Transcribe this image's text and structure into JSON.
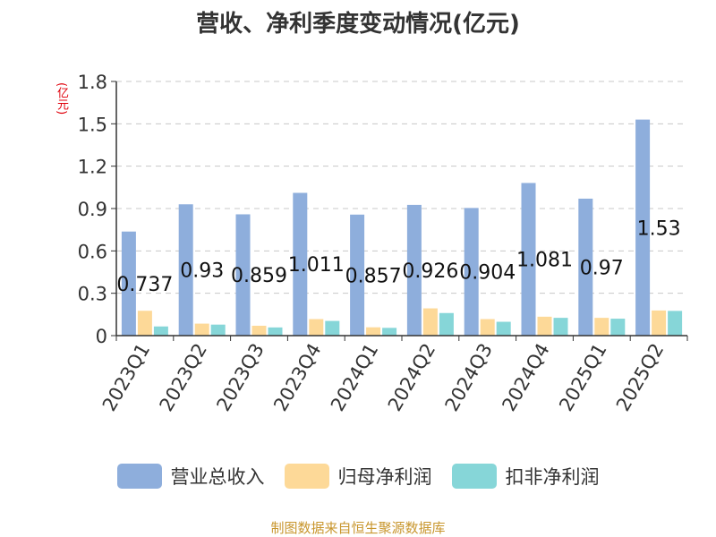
{
  "chart_data": {
    "type": "bar",
    "title": "营收、净利季度变动情况(亿元)",
    "ylabel": "(亿元)",
    "xlabel": "",
    "ylim": [
      0,
      1.8
    ],
    "yticks": [
      "0",
      "0.3",
      "0.6",
      "0.9",
      "1.2",
      "1.5",
      "1.8"
    ],
    "grid": true,
    "legend_position": "bottom",
    "categories": [
      "2023Q1",
      "2023Q2",
      "2023Q3",
      "2023Q4",
      "2024Q1",
      "2024Q2",
      "2024Q3",
      "2024Q4",
      "2025Q1",
      "2025Q2"
    ],
    "series": [
      {
        "name": "营业总收入",
        "color": "#8eaedc",
        "values": [
          0.737,
          0.93,
          0.859,
          1.011,
          0.857,
          0.926,
          0.904,
          1.081,
          0.97,
          1.53
        ],
        "data_labels": [
          "0.737",
          "0.93",
          "0.859",
          "1.011",
          "0.857",
          "0.926",
          "0.904",
          "1.081",
          "0.97",
          "1.53"
        ]
      },
      {
        "name": "归母净利润",
        "color": "#fdd998",
        "values": [
          0.176,
          0.085,
          0.07,
          0.117,
          0.059,
          0.193,
          0.117,
          0.134,
          0.126,
          0.178
        ]
      },
      {
        "name": "扣非净利润",
        "color": "#86d6d8",
        "values": [
          0.065,
          0.078,
          0.058,
          0.104,
          0.055,
          0.16,
          0.098,
          0.126,
          0.12,
          0.175
        ]
      }
    ]
  },
  "source": "制图数据来自恒生聚源数据库"
}
